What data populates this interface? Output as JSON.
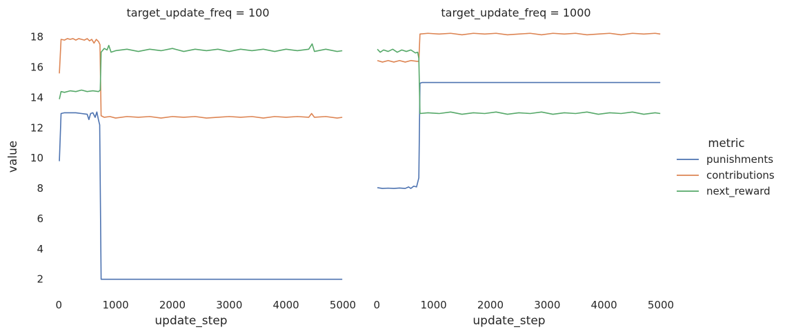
{
  "chart_data": [
    {
      "type": "line",
      "title": "target_update_freq = 100",
      "xlabel": "update_step",
      "ylabel": "value",
      "xlim": [
        -100,
        5000
      ],
      "ylim": [
        1.3,
        18.9
      ],
      "xticks": [
        0,
        1000,
        2000,
        3000,
        4000,
        5000
      ],
      "yticks": [
        2,
        4,
        6,
        8,
        10,
        12,
        14,
        16,
        18
      ],
      "grid": false,
      "series": [
        {
          "name": "punishments",
          "color": "#4c72b0",
          "points": [
            [
              10,
              9.8
            ],
            [
              40,
              12.95
            ],
            [
              100,
              13.0
            ],
            [
              200,
              13.0
            ],
            [
              300,
              13.0
            ],
            [
              400,
              12.95
            ],
            [
              500,
              12.9
            ],
            [
              530,
              12.55
            ],
            [
              560,
              12.95
            ],
            [
              600,
              13.0
            ],
            [
              640,
              12.7
            ],
            [
              670,
              13.05
            ],
            [
              700,
              12.5
            ],
            [
              720,
              12.2
            ],
            [
              745,
              2.0
            ],
            [
              1000,
              2.0
            ],
            [
              2000,
              2.0
            ],
            [
              3000,
              2.0
            ],
            [
              4000,
              2.0
            ],
            [
              4990,
              2.0
            ]
          ]
        },
        {
          "name": "contributions",
          "color": "#dd8452",
          "points": [
            [
              10,
              15.6
            ],
            [
              40,
              17.85
            ],
            [
              100,
              17.8
            ],
            [
              150,
              17.9
            ],
            [
              200,
              17.85
            ],
            [
              250,
              17.9
            ],
            [
              300,
              17.8
            ],
            [
              350,
              17.9
            ],
            [
              400,
              17.85
            ],
            [
              450,
              17.8
            ],
            [
              500,
              17.9
            ],
            [
              540,
              17.75
            ],
            [
              580,
              17.85
            ],
            [
              620,
              17.6
            ],
            [
              660,
              17.85
            ],
            [
              700,
              17.7
            ],
            [
              725,
              17.5
            ],
            [
              745,
              12.8
            ],
            [
              800,
              12.7
            ],
            [
              900,
              12.75
            ],
            [
              1000,
              12.65
            ],
            [
              1200,
              12.75
            ],
            [
              1400,
              12.7
            ],
            [
              1600,
              12.75
            ],
            [
              1800,
              12.65
            ],
            [
              2000,
              12.75
            ],
            [
              2200,
              12.7
            ],
            [
              2400,
              12.75
            ],
            [
              2600,
              12.65
            ],
            [
              2800,
              12.7
            ],
            [
              3000,
              12.75
            ],
            [
              3200,
              12.7
            ],
            [
              3400,
              12.75
            ],
            [
              3600,
              12.65
            ],
            [
              3800,
              12.75
            ],
            [
              4000,
              12.7
            ],
            [
              4200,
              12.75
            ],
            [
              4400,
              12.7
            ],
            [
              4450,
              12.95
            ],
            [
              4500,
              12.7
            ],
            [
              4700,
              12.75
            ],
            [
              4900,
              12.65
            ],
            [
              4990,
              12.7
            ]
          ]
        },
        {
          "name": "next_reward",
          "color": "#55a868",
          "points": [
            [
              10,
              13.9
            ],
            [
              40,
              14.4
            ],
            [
              100,
              14.35
            ],
            [
              200,
              14.45
            ],
            [
              300,
              14.4
            ],
            [
              400,
              14.5
            ],
            [
              500,
              14.4
            ],
            [
              600,
              14.45
            ],
            [
              700,
              14.4
            ],
            [
              730,
              14.5
            ],
            [
              745,
              17.0
            ],
            [
              800,
              17.25
            ],
            [
              850,
              17.15
            ],
            [
              880,
              17.45
            ],
            [
              920,
              17.0
            ],
            [
              1000,
              17.1
            ],
            [
              1200,
              17.2
            ],
            [
              1400,
              17.05
            ],
            [
              1600,
              17.2
            ],
            [
              1800,
              17.1
            ],
            [
              2000,
              17.25
            ],
            [
              2200,
              17.05
            ],
            [
              2400,
              17.2
            ],
            [
              2600,
              17.1
            ],
            [
              2800,
              17.2
            ],
            [
              3000,
              17.05
            ],
            [
              3200,
              17.2
            ],
            [
              3400,
              17.1
            ],
            [
              3600,
              17.2
            ],
            [
              3800,
              17.05
            ],
            [
              4000,
              17.2
            ],
            [
              4200,
              17.1
            ],
            [
              4400,
              17.2
            ],
            [
              4460,
              17.55
            ],
            [
              4500,
              17.05
            ],
            [
              4700,
              17.2
            ],
            [
              4900,
              17.05
            ],
            [
              4990,
              17.1
            ]
          ]
        }
      ]
    },
    {
      "type": "line",
      "title": "target_update_freq = 1000",
      "xlabel": "update_step",
      "ylabel": "",
      "xlim": [
        -100,
        5000
      ],
      "ylim": [
        1.3,
        18.9
      ],
      "xticks": [
        0,
        1000,
        2000,
        3000,
        4000,
        5000
      ],
      "yticks": [],
      "grid": false,
      "series": [
        {
          "name": "punishments",
          "color": "#4c72b0",
          "points": [
            [
              10,
              8.05
            ],
            [
              100,
              8.0
            ],
            [
              200,
              8.02
            ],
            [
              300,
              8.0
            ],
            [
              400,
              8.03
            ],
            [
              500,
              8.0
            ],
            [
              560,
              8.1
            ],
            [
              600,
              8.0
            ],
            [
              650,
              8.15
            ],
            [
              700,
              8.1
            ],
            [
              740,
              8.7
            ],
            [
              760,
              14.95
            ],
            [
              800,
              15.0
            ],
            [
              1000,
              15.0
            ],
            [
              2000,
              15.0
            ],
            [
              3000,
              15.0
            ],
            [
              4000,
              15.0
            ],
            [
              4990,
              15.0
            ]
          ]
        },
        {
          "name": "contributions",
          "color": "#dd8452",
          "points": [
            [
              10,
              16.45
            ],
            [
              100,
              16.35
            ],
            [
              200,
              16.45
            ],
            [
              300,
              16.35
            ],
            [
              400,
              16.45
            ],
            [
              500,
              16.35
            ],
            [
              600,
              16.45
            ],
            [
              700,
              16.4
            ],
            [
              740,
              16.4
            ],
            [
              760,
              18.2
            ],
            [
              900,
              18.25
            ],
            [
              1100,
              18.2
            ],
            [
              1300,
              18.25
            ],
            [
              1500,
              18.15
            ],
            [
              1700,
              18.25
            ],
            [
              1900,
              18.2
            ],
            [
              2100,
              18.25
            ],
            [
              2300,
              18.15
            ],
            [
              2500,
              18.2
            ],
            [
              2700,
              18.25
            ],
            [
              2900,
              18.15
            ],
            [
              3100,
              18.25
            ],
            [
              3300,
              18.2
            ],
            [
              3500,
              18.25
            ],
            [
              3700,
              18.15
            ],
            [
              3900,
              18.2
            ],
            [
              4100,
              18.25
            ],
            [
              4300,
              18.15
            ],
            [
              4500,
              18.25
            ],
            [
              4700,
              18.2
            ],
            [
              4900,
              18.25
            ],
            [
              4990,
              18.2
            ]
          ]
        },
        {
          "name": "next_reward",
          "color": "#55a868",
          "points": [
            [
              10,
              17.2
            ],
            [
              60,
              17.0
            ],
            [
              120,
              17.15
            ],
            [
              200,
              17.05
            ],
            [
              280,
              17.2
            ],
            [
              360,
              17.0
            ],
            [
              440,
              17.15
            ],
            [
              520,
              17.05
            ],
            [
              600,
              17.15
            ],
            [
              680,
              16.95
            ],
            [
              720,
              17.0
            ],
            [
              740,
              16.6
            ],
            [
              760,
              12.95
            ],
            [
              900,
              13.0
            ],
            [
              1100,
              12.95
            ],
            [
              1300,
              13.05
            ],
            [
              1500,
              12.9
            ],
            [
              1700,
              13.0
            ],
            [
              1900,
              12.95
            ],
            [
              2100,
              13.05
            ],
            [
              2300,
              12.9
            ],
            [
              2500,
              13.0
            ],
            [
              2700,
              12.95
            ],
            [
              2900,
              13.05
            ],
            [
              3100,
              12.9
            ],
            [
              3300,
              13.0
            ],
            [
              3500,
              12.95
            ],
            [
              3700,
              13.05
            ],
            [
              3900,
              12.9
            ],
            [
              4100,
              13.0
            ],
            [
              4300,
              12.95
            ],
            [
              4500,
              13.05
            ],
            [
              4700,
              12.9
            ],
            [
              4900,
              13.0
            ],
            [
              4990,
              12.95
            ]
          ]
        }
      ]
    }
  ],
  "legend": {
    "title": "metric",
    "placement": "right",
    "entries": [
      {
        "name": "punishments",
        "color": "#4c72b0"
      },
      {
        "name": "contributions",
        "color": "#dd8452"
      },
      {
        "name": "next_reward",
        "color": "#55a868"
      }
    ]
  }
}
